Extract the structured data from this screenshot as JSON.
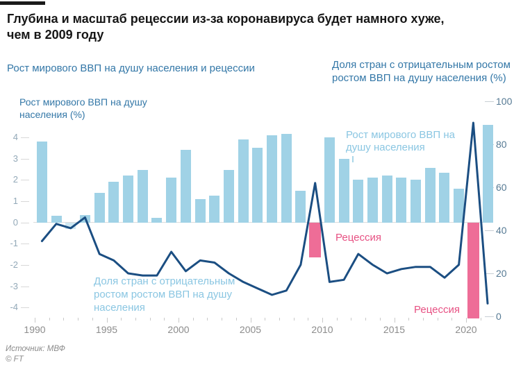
{
  "header": {
    "title": "Глубина и масштаб рецессии из-за коронавируса будет намного хуже,\nчем в 2009 году",
    "subtitle_left": "Рост мирового ВВП на душу населения и рецессии"
  },
  "chart_data": {
    "type": "bar+line",
    "title": "Рост мирового ВВП на душу населения и рецессии",
    "x_axis": {
      "start_year": 1990,
      "end_year": 2021,
      "major_labels": [
        1990,
        1995,
        2000,
        2005,
        2010,
        2015,
        2020
      ]
    },
    "left_axis": {
      "label": "Рост мирового ВВП на душу\nнаселения (%)",
      "ticks": [
        4,
        3,
        2,
        1,
        0,
        -1,
        -2,
        -3,
        -4
      ],
      "range": [
        -4,
        4
      ]
    },
    "right_axis": {
      "label": "Доля стран с отрицательным ростом\nростом ВВП на душу населения (%)",
      "ticks": [
        100,
        80,
        60,
        40,
        20,
        0
      ],
      "range": [
        0,
        100
      ]
    },
    "years": [
      1990,
      1991,
      1992,
      1993,
      1994,
      1995,
      1996,
      1997,
      1998,
      1999,
      2000,
      2001,
      2002,
      2003,
      2004,
      2005,
      2006,
      2007,
      2008,
      2009,
      2010,
      2011,
      2012,
      2013,
      2014,
      2015,
      2016,
      2017,
      2018,
      2019,
      2020,
      2021
    ],
    "series": [
      {
        "name": "Рост мирового ВВП на душу населения",
        "type": "bar",
        "axis": "left",
        "values": [
          3.8,
          0.3,
          -0.3,
          0.35,
          1.4,
          1.9,
          2.2,
          2.45,
          0.2,
          2.1,
          3.4,
          1.1,
          1.25,
          2.45,
          3.9,
          3.5,
          4.1,
          4.15,
          1.5,
          -1.65,
          4.0,
          3.0,
          2.0,
          2.1,
          2.2,
          2.1,
          2.0,
          2.55,
          2.35,
          1.6,
          -4.5,
          4.6
        ]
      },
      {
        "name": "Доля стран с отрицательным ростом ВВП на душу населения",
        "type": "line",
        "axis": "right",
        "values": [
          35,
          43,
          41,
          46,
          29,
          26,
          20,
          19,
          19,
          30,
          21,
          26,
          25,
          20,
          16,
          13,
          10,
          12,
          24,
          62,
          16,
          17,
          29,
          24,
          20,
          22,
          23,
          23,
          18,
          24,
          90,
          6
        ]
      }
    ],
    "recession_years": [
      2009,
      2020
    ],
    "grid": "zero-line-only",
    "legend_position": "in-chart-annotations"
  },
  "annotations": {
    "bars_label": "Рост мирового ВВП на\nдушу населения",
    "line_label": "Доля стран с отрицательным\nростом ростом ВВП на душу\nнаселения",
    "recession_label": "Рецессия"
  },
  "footer": {
    "source": "Источник: МВФ",
    "copyright": "© FT"
  },
  "colors": {
    "bar": "#a0d2e6",
    "recession_bar": "#ee6d97",
    "line": "#1b4e82",
    "heading_text": "#161616",
    "accent_blue": "#3377a7",
    "light_blue_label": "#8ac6e2",
    "pink_label": "#e75183",
    "left_axis_text": "#93a9b8",
    "right_axis_text": "#567a94",
    "year_label": "#8c8c8c",
    "footer_text": "#8b8b8b",
    "top_rule": "#1a1a1a"
  }
}
